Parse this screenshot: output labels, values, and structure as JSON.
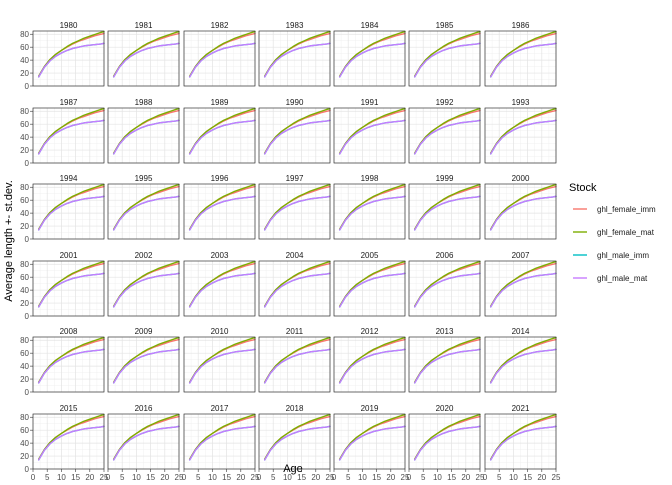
{
  "chart_data": {
    "type": "line",
    "facet_titles": [
      "1980",
      "1981",
      "1982",
      "1983",
      "1984",
      "1985",
      "1986",
      "1987",
      "1988",
      "1989",
      "1990",
      "1991",
      "1992",
      "1993",
      "1994",
      "1995",
      "1996",
      "1997",
      "1998",
      "1999",
      "2000",
      "2001",
      "2002",
      "2003",
      "2004",
      "2005",
      "2006",
      "2007",
      "2008",
      "2009",
      "2010",
      "2011",
      "2012",
      "2013",
      "2014",
      "2015",
      "2016",
      "2017",
      "2018",
      "2019",
      "2020",
      "2021"
    ],
    "facet_columns": 7,
    "xlabel": "Age",
    "ylabel": "Average length +- st.dev.",
    "xlim": [
      0,
      25
    ],
    "ylim": [
      0,
      85
    ],
    "x_ticks": [
      0,
      5,
      10,
      15,
      20,
      25
    ],
    "x_tick_labels": [
      "0",
      "5",
      "10",
      "15",
      "20",
      "25"
    ],
    "y_ticks": [
      0,
      20,
      40,
      60,
      80
    ],
    "y_tick_labels": [
      "0",
      "20",
      "40",
      "60",
      "80"
    ],
    "grid": true,
    "legend": {
      "title": "Stock",
      "position": "right"
    },
    "series": [
      {
        "name": "ghl_female_imm",
        "color": "#F8766D",
        "x": [
          2,
          4,
          6,
          8,
          10,
          12,
          14,
          16,
          18,
          20,
          22,
          24,
          25
        ],
        "values": [
          15,
          30,
          41,
          49,
          55,
          60,
          65,
          69,
          72,
          75,
          78,
          80,
          81
        ]
      },
      {
        "name": "ghl_female_mat",
        "color": "#7CAE00",
        "x": [
          2,
          4,
          6,
          8,
          10,
          12,
          14,
          16,
          18,
          20,
          22,
          24,
          25
        ],
        "values": [
          15,
          30,
          41,
          49,
          55,
          61,
          66,
          70,
          74,
          77,
          80,
          83,
          84
        ]
      },
      {
        "name": "ghl_male_imm",
        "color": "#00BFC4",
        "x": [
          2,
          4,
          6,
          8,
          10,
          12,
          14,
          16,
          18,
          20,
          22,
          24,
          25
        ],
        "values": [
          14,
          29,
          39,
          46,
          51,
          55,
          58,
          60,
          62,
          63,
          64,
          65,
          66
        ]
      },
      {
        "name": "ghl_male_mat",
        "color": "#C77CFF",
        "x": [
          2,
          4,
          6,
          8,
          10,
          12,
          14,
          16,
          18,
          20,
          22,
          24,
          25
        ],
        "values": [
          14,
          29,
          39,
          46,
          51,
          55,
          58,
          60,
          62,
          63,
          64,
          65,
          66
        ]
      }
    ]
  }
}
